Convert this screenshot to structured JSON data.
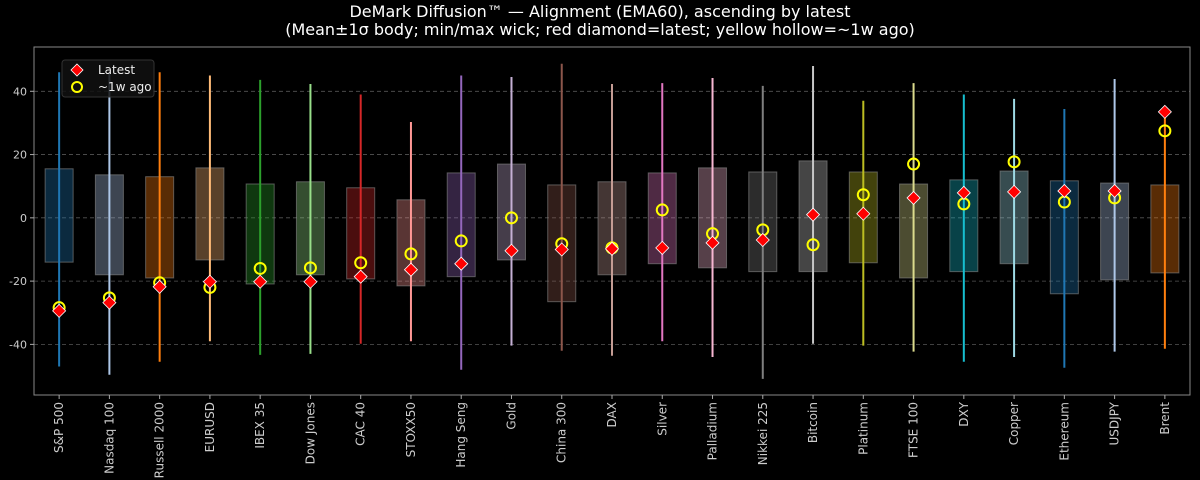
{
  "chart_data": {
    "type": "box",
    "title": "DeMark Diffusion™ — Alignment (EMA60), ascending by latest",
    "subtitle": "(Mean±1σ body; min/max wick; red diamond=latest; yellow hollow=~1w ago)",
    "xlabel": "",
    "ylabel": "",
    "ylim": [
      -56,
      54
    ],
    "yticks": [
      -40,
      -20,
      0,
      20,
      40
    ],
    "grid": true,
    "legend": {
      "placement": "top-left",
      "entries": [
        "Latest",
        "~1w ago"
      ]
    },
    "marker_colors": {
      "latest": "#ff0000",
      "week_ago": "#ffff00"
    },
    "categories": [
      "S&P 500",
      "Nasdaq 100",
      "Russell 2000",
      "EURUSD",
      "IBEX 35",
      "Dow Jones",
      "CAC 40",
      "STOXX50",
      "Hang Seng",
      "Gold",
      "China 300",
      "DAX",
      "Silver",
      "Palladium",
      "Nikkei 225",
      "Bitcoin",
      "Platinum",
      "FTSE 100",
      "DXY",
      "Copper",
      "Ethereum",
      "USDJPY",
      "Brent"
    ],
    "colors": [
      "#1f77b4",
      "#aec7e8",
      "#ff7f0e",
      "#ffbb78",
      "#2ca02c",
      "#98df8a",
      "#d62728",
      "#ff9896",
      "#9467bd",
      "#c5b0d5",
      "#8c564b",
      "#c49c94",
      "#e377c2",
      "#f7b6d2",
      "#7f7f7f",
      "#c7c7c7",
      "#bcbd22",
      "#dbdb8d",
      "#17becf",
      "#9edae5",
      "#1f77b4",
      "#aec7e8",
      "#ff7f0e"
    ],
    "body_high": [
      15.5,
      13.6,
      13.0,
      15.8,
      10.7,
      11.4,
      9.5,
      5.7,
      14.2,
      17.0,
      10.4,
      11.4,
      14.2,
      15.8,
      14.5,
      18.0,
      14.5,
      10.7,
      12.0,
      14.8,
      11.7,
      11.0,
      10.4
    ],
    "body_low": [
      -14.0,
      -18.0,
      -19.0,
      -13.3,
      -20.9,
      -18.0,
      -19.3,
      -21.5,
      -18.6,
      -13.3,
      -26.5,
      -18.0,
      -14.5,
      -15.8,
      -17.0,
      -17.0,
      -14.2,
      -19.0,
      -17.0,
      -14.5,
      -24.0,
      -19.6,
      -17.4
    ],
    "max": [
      46.0,
      46.0,
      46.0,
      45.0,
      43.6,
      42.3,
      39.0,
      30.3,
      45.0,
      44.5,
      48.7,
      42.3,
      42.6,
      44.2,
      41.7,
      48.0,
      37.0,
      42.6,
      39.0,
      37.6,
      34.4,
      43.9,
      33.8
    ],
    "min": [
      -47.0,
      -49.6,
      -45.5,
      -39.0,
      -43.3,
      -43.0,
      -39.8,
      -39.0,
      -48.0,
      -40.4,
      -42.0,
      -43.6,
      -39.0,
      -44.0,
      -50.9,
      -39.8,
      -40.4,
      -42.3,
      -45.5,
      -44.0,
      -47.4,
      -42.3,
      -41.4
    ],
    "latest": [
      -29.4,
      -26.8,
      -21.8,
      -20.2,
      -20.2,
      -20.2,
      -18.6,
      -16.4,
      -14.5,
      -10.4,
      -10.0,
      -9.8,
      -9.5,
      -7.9,
      -7.0,
      1.0,
      1.3,
      6.3,
      7.9,
      8.2,
      8.5,
      8.5,
      33.5
    ],
    "week_ago": [
      -28.4,
      -25.3,
      -20.5,
      -22.0,
      -16.0,
      -15.8,
      -14.2,
      -11.4,
      -7.3,
      0.0,
      -8.2,
      -9.5,
      2.5,
      -5.0,
      -3.8,
      -8.5,
      7.3,
      17.0,
      4.4,
      17.7,
      5.0,
      6.3,
      27.5
    ]
  }
}
